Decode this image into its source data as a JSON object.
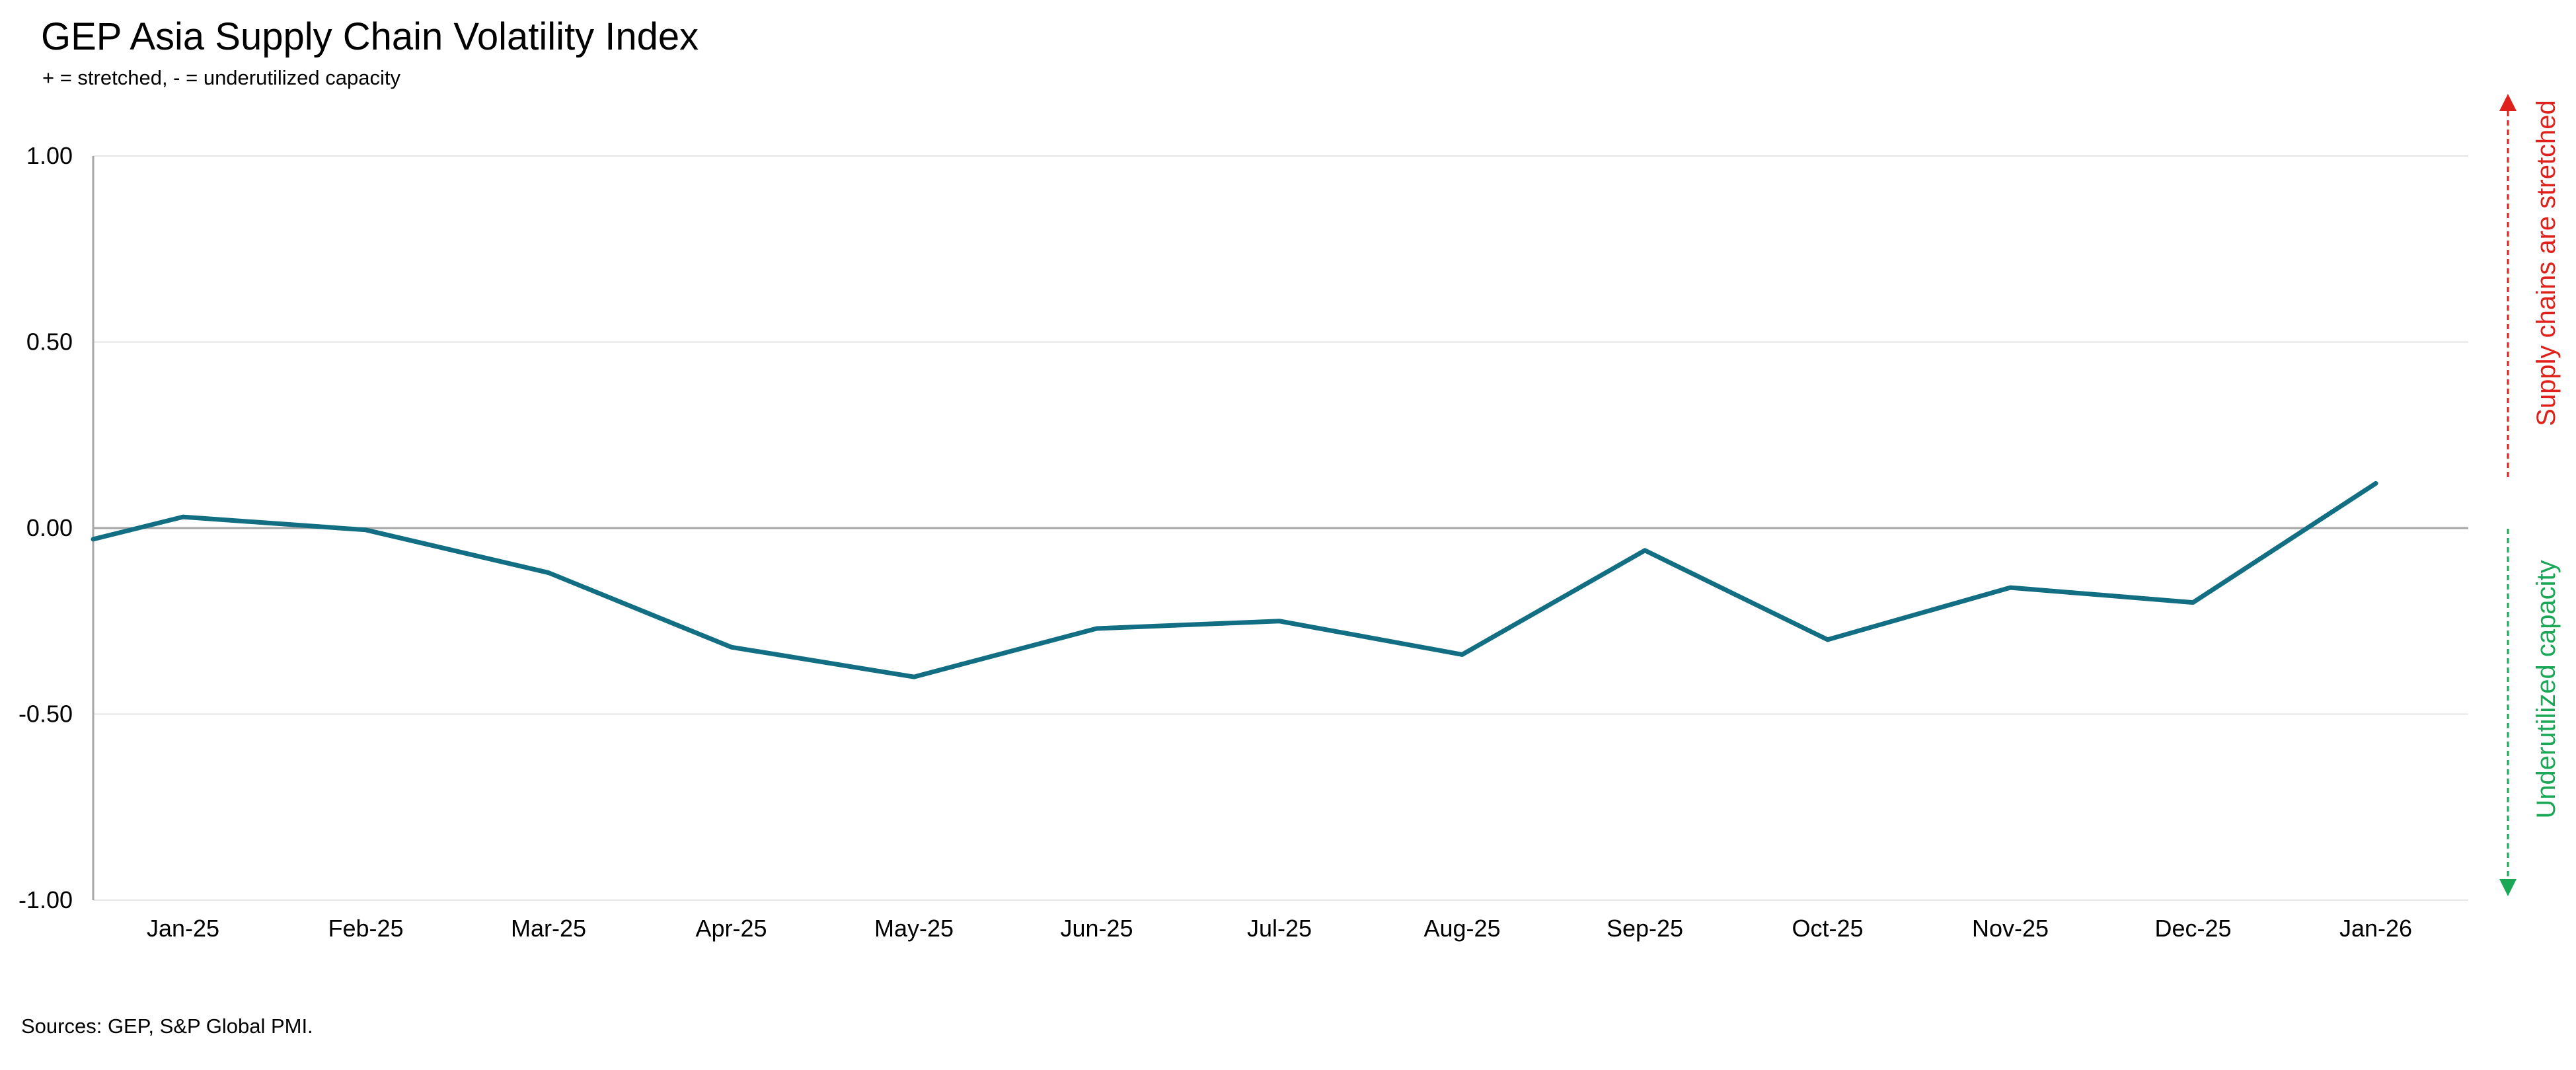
{
  "chart_data": {
    "type": "line",
    "title": "GEP Asia Supply Chain Volatility Index",
    "subtitle": "+ = stretched, - = underutilized capacity",
    "source": "Sources: GEP, S&P Global PMI.",
    "categories": [
      "Jan-25",
      "Feb-25",
      "Mar-25",
      "Apr-25",
      "May-25",
      "Jun-25",
      "Jul-25",
      "Aug-25",
      "Sep-25",
      "Oct-25",
      "Nov-25",
      "Dec-25",
      "Jan-26"
    ],
    "series": [
      {
        "values": [
          0.03,
          -0.005,
          -0.12,
          -0.32,
          -0.4,
          -0.27,
          -0.25,
          -0.34,
          -0.06,
          -0.3,
          -0.16,
          -0.2,
          0.12
        ],
        "color": "#126e82"
      }
    ],
    "leading_value": -0.03,
    "ylim": [
      -1.0,
      1.0
    ],
    "yticks": [
      "1.00",
      "0.50",
      "0.00",
      "-0.50",
      "-1.00"
    ],
    "ytick_values": [
      1.0,
      0.5,
      0.0,
      -0.5,
      -1.0
    ],
    "grid": true,
    "annotations": {
      "stretched": {
        "text": "Supply chains are stretched",
        "color": "#e0201b"
      },
      "underutilized": {
        "text": "Underutilized capacity",
        "color": "#1aa856"
      }
    }
  }
}
